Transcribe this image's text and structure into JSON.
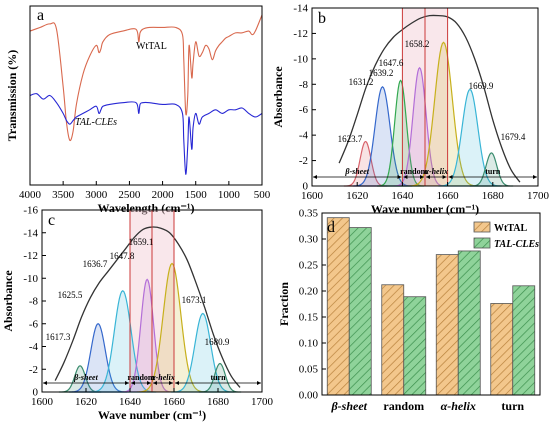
{
  "chart_data": [
    {
      "panel": "a",
      "type": "line",
      "xlabel": "Wavelength (cm⁻¹)",
      "ylabel": "Transmission (%)",
      "xlim": [
        4000,
        500
      ],
      "x_ticks": [
        4000,
        3500,
        3000,
        2500,
        2000,
        1500,
        1000,
        500
      ],
      "series": [
        {
          "name": "WtTAL",
          "color": "#d9694e",
          "x": [
            4000,
            3850,
            3700,
            3600,
            3500,
            3450,
            3400,
            3350,
            3300,
            3200,
            3100,
            3000,
            2960,
            2930,
            2900,
            2800,
            2600,
            2400,
            2360,
            2340,
            2300,
            2200,
            2000,
            1800,
            1700,
            1680,
            1650,
            1620,
            1600,
            1560,
            1540,
            1500,
            1450,
            1400,
            1350,
            1300,
            1250,
            1200,
            1150,
            1100,
            1050,
            1000,
            900,
            800,
            700,
            650,
            600,
            500
          ],
          "y": [
            86,
            88,
            90,
            87,
            55,
            35,
            25,
            30,
            45,
            62,
            72,
            78,
            74,
            76,
            80,
            84,
            86,
            87,
            80,
            85,
            87,
            88,
            88,
            88,
            84,
            70,
            40,
            50,
            78,
            60,
            68,
            80,
            72,
            74,
            78,
            76,
            70,
            75,
            78,
            80,
            82,
            83,
            85,
            85,
            86,
            84,
            86,
            95
          ]
        },
        {
          "name": "TAL-CLEs",
          "color": "#2727d4",
          "x": [
            4000,
            3900,
            3800,
            3700,
            3600,
            3500,
            3450,
            3400,
            3350,
            3300,
            3200,
            3100,
            3000,
            2960,
            2930,
            2900,
            2800,
            2600,
            2400,
            2360,
            2340,
            2300,
            2200,
            2000,
            1800,
            1700,
            1680,
            1650,
            1620,
            1600,
            1560,
            1540,
            1500,
            1450,
            1400,
            1300,
            1200,
            1100,
            1000,
            900,
            800,
            700,
            600,
            500
          ],
          "y": [
            50,
            51,
            48,
            50,
            46,
            40,
            36,
            34,
            36,
            38,
            40,
            42,
            44,
            40,
            42,
            44,
            45,
            46,
            46,
            40,
            45,
            46,
            46,
            45,
            45,
            40,
            25,
            6,
            22,
            38,
            20,
            32,
            40,
            34,
            38,
            40,
            42,
            40,
            42,
            42,
            43,
            40,
            38,
            40
          ]
        }
      ],
      "annotations": [
        "WtTAL",
        "TAL-CLEs"
      ]
    },
    {
      "panel": "b",
      "type": "area",
      "xlabel": "Wave number (cm⁻¹)",
      "ylabel": "Absorbance",
      "xlim": [
        1600,
        1700
      ],
      "ylim": [
        0,
        -14
      ],
      "x_ticks": [
        1600,
        1620,
        1640,
        1660,
        1680,
        1700
      ],
      "y_ticks": [
        0,
        -2,
        -4,
        -6,
        -8,
        -10,
        -12,
        -14
      ],
      "envelope": {
        "x": [
          1612,
          1616,
          1620,
          1624,
          1628,
          1632,
          1636,
          1640,
          1644,
          1648,
          1652,
          1656,
          1660,
          1664,
          1668,
          1672,
          1676,
          1680,
          1684,
          1688,
          1692
        ],
        "y": [
          -1.8,
          -3.5,
          -5.6,
          -7.8,
          -9.5,
          -10.8,
          -11.7,
          -12.3,
          -12.8,
          -13.2,
          -13.4,
          -13.4,
          -13.3,
          -12.8,
          -11.7,
          -10,
          -7.8,
          -5.2,
          -3,
          -1.3,
          -0.3
        ]
      },
      "peaks": [
        {
          "center": 1623.7,
          "height": -3.5,
          "width": 2.4,
          "color": "#d8626b"
        },
        {
          "center": 1631.2,
          "height": -7.8,
          "width": 3.3,
          "color": "#3568cc"
        },
        {
          "center": 1639.2,
          "height": -8.3,
          "width": 2.6,
          "color": "#33a850"
        },
        {
          "center": 1647.6,
          "height": -9.3,
          "width": 2.9,
          "color": "#b36ed8"
        },
        {
          "center": 1658.2,
          "height": -11.3,
          "width": 3.9,
          "color": "#c7b01c"
        },
        {
          "center": 1669.9,
          "height": -7.6,
          "width": 3.5,
          "color": "#39b5d6"
        },
        {
          "center": 1679.4,
          "height": -2.6,
          "width": 2.4,
          "color": "#3a8c6e"
        }
      ],
      "peak_labels": [
        "1623.7",
        "1631.2",
        "1639.2",
        "1647.6",
        "1658.2",
        "1669.9",
        "1679.4"
      ],
      "regions": [
        {
          "label": "β-sheet",
          "from": 1600,
          "to": 1640
        },
        {
          "label": "random",
          "from": 1640,
          "to": 1650
        },
        {
          "label": "α-helix",
          "from": 1650,
          "to": 1660
        },
        {
          "label": "turn",
          "from": 1660,
          "to": 1700
        }
      ],
      "boundary_lines": [
        1640,
        1650,
        1660
      ]
    },
    {
      "panel": "c",
      "type": "area",
      "xlabel": "Wave number (cm⁻¹)",
      "ylabel": "Absorbance",
      "xlim": [
        1600,
        1700
      ],
      "ylim": [
        0,
        -16
      ],
      "x_ticks": [
        1600,
        1620,
        1640,
        1660,
        1680,
        1700
      ],
      "y_ticks": [
        0,
        -2,
        -4,
        -6,
        -8,
        -10,
        -12,
        -14,
        -16
      ],
      "envelope": {
        "x": [
          1606,
          1610,
          1614,
          1618,
          1622,
          1626,
          1630,
          1634,
          1638,
          1642,
          1646,
          1650,
          1654,
          1658,
          1662,
          1666,
          1670,
          1674,
          1678,
          1682,
          1686,
          1690
        ],
        "y": [
          -1,
          -2.6,
          -4.5,
          -6.6,
          -8.3,
          -9.6,
          -10.6,
          -11.6,
          -12.6,
          -13.6,
          -14.3,
          -14.5,
          -14.4,
          -14,
          -13,
          -11.6,
          -9.6,
          -7.4,
          -5,
          -3,
          -1.4,
          -0.4
        ]
      },
      "peaks": [
        {
          "center": 1617.3,
          "height": -2.3,
          "width": 2.4,
          "color": "#3a8c6e"
        },
        {
          "center": 1625.5,
          "height": -6,
          "width": 3.3,
          "color": "#3568cc"
        },
        {
          "center": 1636.7,
          "height": -8.9,
          "width": 3.8,
          "color": "#39b5d6"
        },
        {
          "center": 1647.8,
          "height": -9.9,
          "width": 2.9,
          "color": "#b36ed8"
        },
        {
          "center": 1659.1,
          "height": -11.3,
          "width": 4,
          "color": "#c7b01c"
        },
        {
          "center": 1673.1,
          "height": -6.9,
          "width": 3.6,
          "color": "#39b5d6"
        },
        {
          "center": 1680.9,
          "height": -2.5,
          "width": 2.4,
          "color": "#3a8c6e"
        }
      ],
      "peak_labels": [
        "1617.3",
        "1625.5",
        "1636.7",
        "1647.8",
        "1659.1",
        "1673.1",
        "1680.9"
      ],
      "regions": [
        {
          "label": "β-sheet",
          "from": 1600,
          "to": 1640
        },
        {
          "label": "random",
          "from": 1640,
          "to": 1650
        },
        {
          "label": "α-helix",
          "from": 1650,
          "to": 1660
        },
        {
          "label": "turn",
          "from": 1660,
          "to": 1700
        }
      ],
      "boundary_lines": [
        1640,
        1650,
        1660
      ]
    },
    {
      "panel": "d",
      "type": "bar",
      "ylabel": "Fraction",
      "ylim": [
        0,
        0.35
      ],
      "y_ticks": [
        0.0,
        0.05,
        0.1,
        0.15,
        0.2,
        0.25,
        0.3,
        0.35
      ],
      "categories": [
        "β-sheet",
        "random",
        "α-helix",
        "turn"
      ],
      "series": [
        {
          "name": "WtTAL",
          "values": [
            0.341,
            0.212,
            0.27,
            0.176
          ],
          "color": "#f3c78c"
        },
        {
          "name": "TAL-CLEs",
          "values": [
            0.322,
            0.189,
            0.277,
            0.21
          ],
          "color": "#8fd39a"
        }
      ],
      "legend": "top-right"
    }
  ],
  "panel_labels": [
    "a",
    "b",
    "c",
    "d"
  ],
  "colors": {
    "region_shade": "#f2c9d2",
    "boundary_line": "#cc3a3a",
    "axis": "#000000"
  }
}
